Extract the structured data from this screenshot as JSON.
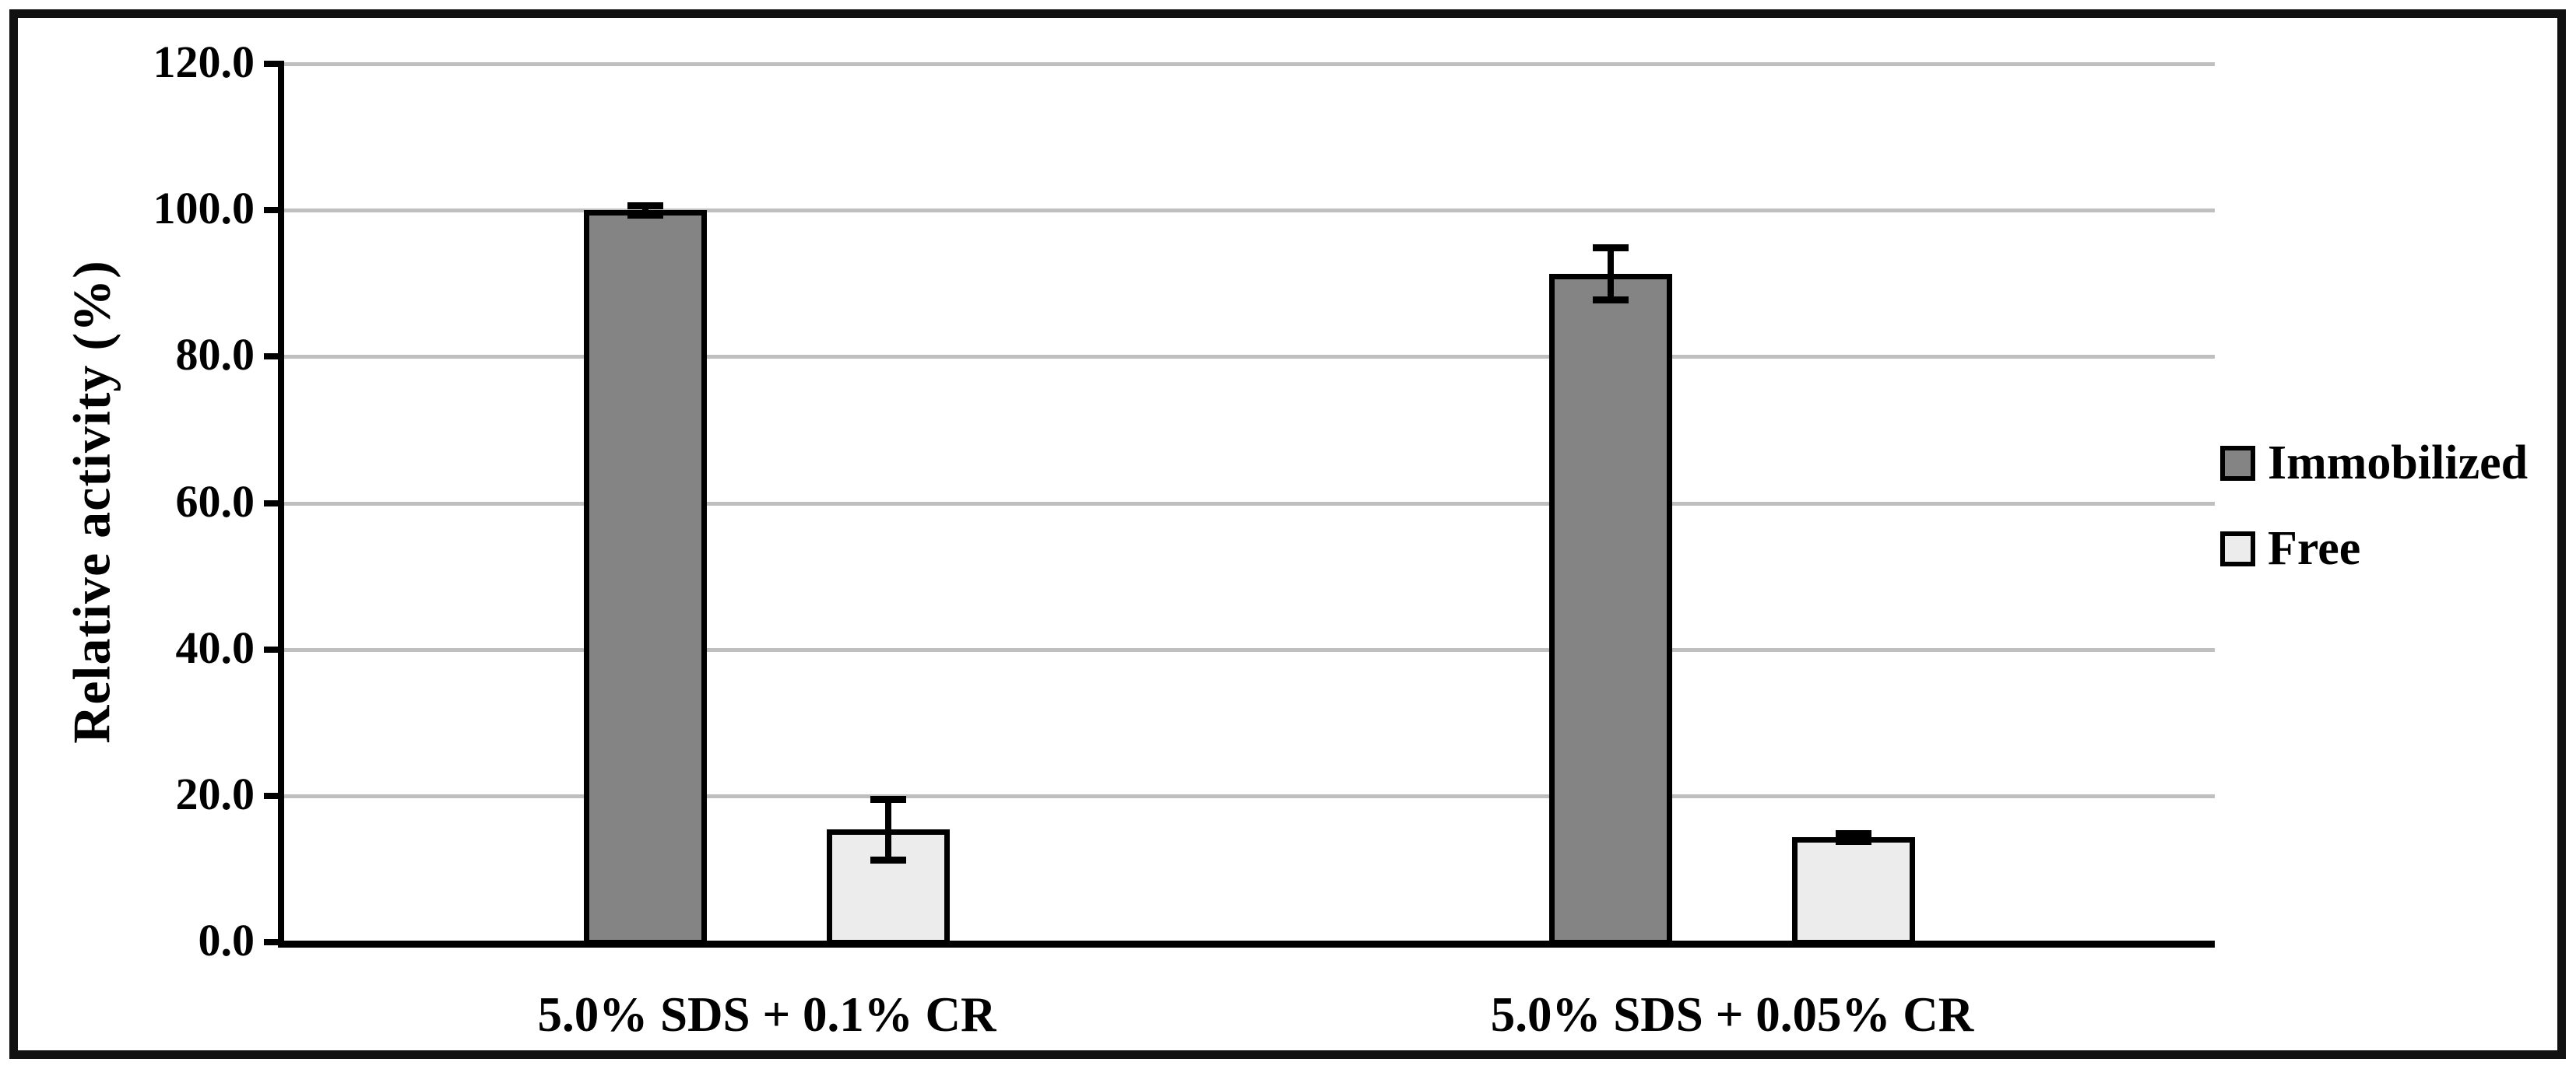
{
  "figure": {
    "background": "#ffffff",
    "border_color": "#111111"
  },
  "chart_data": {
    "type": "bar",
    "title": "",
    "xlabel": "",
    "ylabel": "Relative activity (%)",
    "ylim": [
      0,
      120
    ],
    "ytick_step": 20,
    "ytick_labels": [
      "0.0",
      "20.0",
      "40.0",
      "60.0",
      "80.0",
      "100.0",
      "120.0"
    ],
    "grid": "horizontal",
    "gridline_color": "#bfbfbf",
    "axis_color": "#000000",
    "error_bar_color": "#000000",
    "categories": [
      "5.0% SDS + 0.1% CR",
      "5.0% SDS + 0.05% CR"
    ],
    "series": [
      {
        "name": "Immobilized",
        "values": [
          100.0,
          91.3
        ],
        "errors": [
          0.7,
          3.6
        ],
        "fill": "#848484",
        "outline": "#000000"
      },
      {
        "name": "Free",
        "values": [
          15.4,
          14.3
        ],
        "errors": [
          4.2,
          0.6
        ],
        "fill": "#ececec",
        "outline": "#000000"
      }
    ],
    "legend": {
      "position": "right",
      "entries": [
        "Immobilized",
        "Free"
      ]
    }
  }
}
